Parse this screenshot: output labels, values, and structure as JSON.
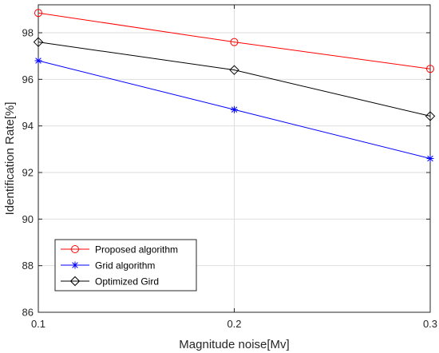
{
  "chart_data": {
    "type": "line",
    "title": "",
    "xlabel": "Magnitude noise[Mv]",
    "ylabel": "Identification Rate[%]",
    "x": [
      0.1,
      0.2,
      0.3
    ],
    "xticks": [
      "0.1",
      "0.2",
      "0.3"
    ],
    "yticks": [
      "86",
      "88",
      "90",
      "92",
      "94",
      "96",
      "98"
    ],
    "xlim": [
      0.1,
      0.3
    ],
    "ylim": [
      86,
      99.2
    ],
    "grid": true,
    "legend_position": "bottom-left",
    "series": [
      {
        "name": "Proposed algorithm",
        "values": [
          98.85,
          97.6,
          96.45
        ],
        "color": "#ff0000",
        "marker": "circle"
      },
      {
        "name": "Grid algorithm",
        "values": [
          96.8,
          94.7,
          92.6
        ],
        "color": "#0000ff",
        "marker": "asterisk"
      },
      {
        "name": "Optimized Gird",
        "values": [
          97.6,
          96.4,
          94.42
        ],
        "color": "#000000",
        "marker": "diamond"
      }
    ]
  }
}
